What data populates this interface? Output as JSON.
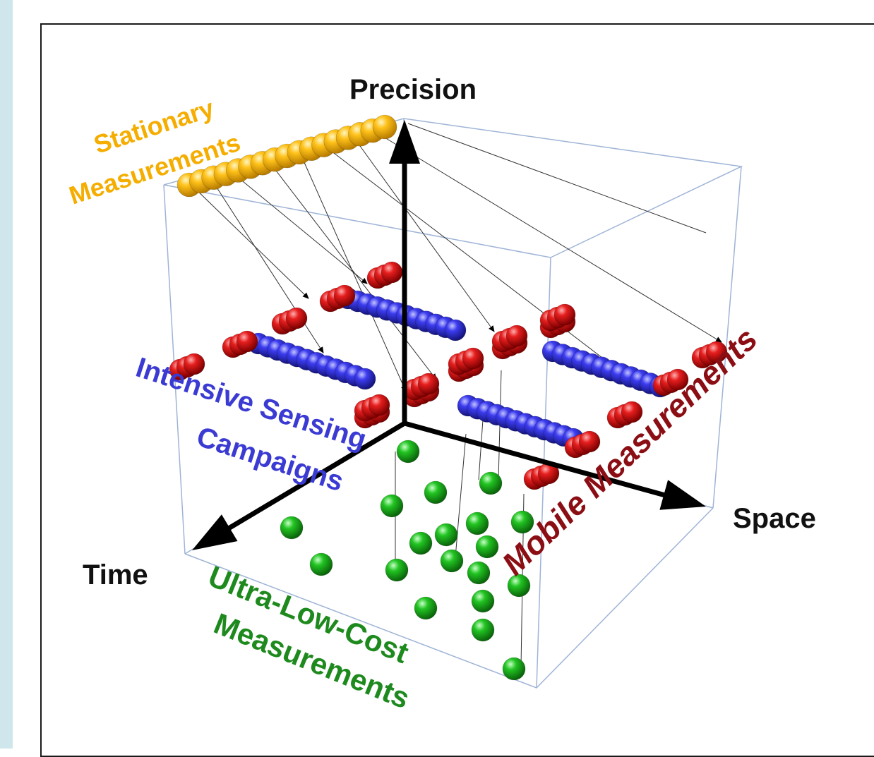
{
  "axes": {
    "precision": "Precision",
    "space": "Space",
    "time": "Time"
  },
  "categories": {
    "stationary": {
      "line1": "Stationary",
      "line2": "Measurements",
      "color": "#f5ad00"
    },
    "intensive": {
      "line1": "Intensive Sensing",
      "line2": "Campaigns",
      "color": "#3b3bd4"
    },
    "mobile": {
      "line1": "Mobile Measurements",
      "color": "#8b0e14"
    },
    "ultra_low_cost": {
      "line1": "Ultra-Low-Cost",
      "line2": "Measurements",
      "color": "#1e8a1e"
    }
  },
  "colors": {
    "box_edge": "#9fb4d6",
    "axis": "#000000",
    "yellow_sphere": "#f2b000",
    "red_sphere": "#d11414",
    "blue_sphere": "#3434e0",
    "green_sphere": "#18b018"
  }
}
